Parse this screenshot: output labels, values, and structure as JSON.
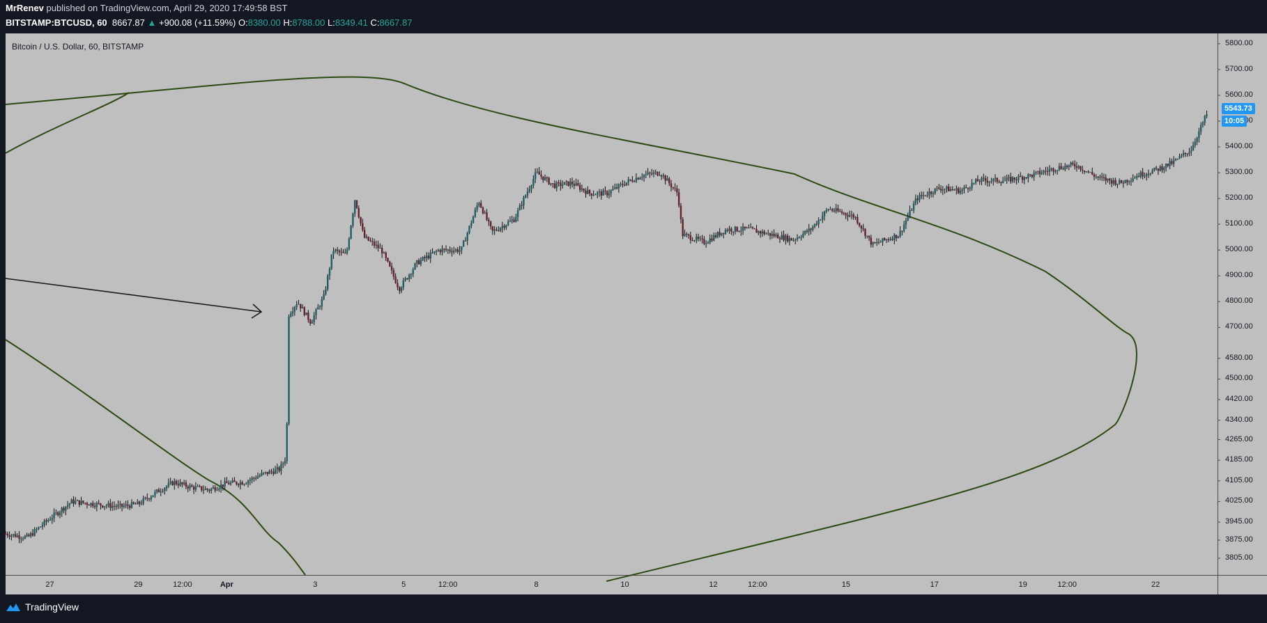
{
  "header": {
    "author": "MrRenev",
    "published": "published on TradingView.com, April 29, 2020 17:49:58 BST",
    "symbol": "BITSTAMP:BTCUSD, 60",
    "last": "8667.87",
    "change_arrow": "▲",
    "change": "+900.08 (+11.59%)",
    "o_label": "O:",
    "o_value": "8380.00",
    "h_label": "H:",
    "h_value": "8788.00",
    "l_label": "L:",
    "l_value": "8349.41",
    "c_label": "C:",
    "c_value": "8667.87"
  },
  "footer": {
    "brand": "TradingView",
    "logo_icon": "tradingview-logo-icon"
  },
  "colors": {
    "background": "#131722",
    "chart_bg": "#bfbfbf",
    "up_candle": "#1d5f66",
    "down_candle": "#6b1f2a",
    "drawing": "#2a4a0f",
    "label_blue": "#2196f3"
  },
  "chart_data": {
    "type": "candlestick",
    "title": "Bitcoin / U.S. Dollar, 60, BITSTAMP",
    "xlabel": "",
    "ylabel": "",
    "ylim": [
      3740,
      5840
    ],
    "y_ticks": [
      "5800.00",
      "5700.00",
      "5600.00",
      "5500.00",
      "5400.00",
      "5300.00",
      "5200.00",
      "5100.00",
      "5000.00",
      "4900.00",
      "4800.00",
      "4700.00",
      "4580.00",
      "4500.00",
      "4420.00",
      "4340.00",
      "4265.00",
      "4185.00",
      "4105.00",
      "4025.00",
      "3945.00",
      "3875.00",
      "3805.00"
    ],
    "x_ticks": [
      "27",
      "29",
      "12:00",
      "Apr",
      "3",
      "5",
      "12:00",
      "8",
      "10",
      "12",
      "12:00",
      "15",
      "17",
      "19",
      "12:00",
      "22"
    ],
    "x_tick_steps": [
      2,
      4,
      5,
      6,
      8,
      10,
      11,
      13,
      15,
      17,
      18,
      20,
      22,
      24,
      25,
      27
    ],
    "x_range_steps": [
      1,
      28.4
    ],
    "price_path": [
      [
        1,
        3900
      ],
      [
        1.5,
        3885
      ],
      [
        1.9,
        3945
      ],
      [
        2.5,
        4025
      ],
      [
        3,
        4015
      ],
      [
        3.6,
        4005
      ],
      [
        4,
        4015
      ],
      [
        4.4,
        4060
      ],
      [
        4.8,
        4100
      ],
      [
        5.2,
        4080
      ],
      [
        5.6,
        4070
      ],
      [
        6,
        4095
      ],
      [
        6.4,
        4100
      ],
      [
        6.8,
        4130
      ],
      [
        7.2,
        4150
      ],
      [
        7.35,
        4200
      ],
      [
        7.4,
        4750
      ],
      [
        7.6,
        4800
      ],
      [
        7.9,
        4720
      ],
      [
        8.2,
        4820
      ],
      [
        8.4,
        5000
      ],
      [
        8.7,
        4980
      ],
      [
        8.9,
        5200
      ],
      [
        9.1,
        5050
      ],
      [
        9.5,
        5000
      ],
      [
        9.9,
        4850
      ],
      [
        10.3,
        4950
      ],
      [
        10.8,
        5000
      ],
      [
        11.3,
        5000
      ],
      [
        11.7,
        5190
      ],
      [
        12,
        5070
      ],
      [
        12.5,
        5120
      ],
      [
        13,
        5300
      ],
      [
        13.4,
        5250
      ],
      [
        13.8,
        5260
      ],
      [
        14.2,
        5220
      ],
      [
        14.6,
        5220
      ],
      [
        15,
        5260
      ],
      [
        15.4,
        5290
      ],
      [
        15.8,
        5300
      ],
      [
        16.2,
        5220
      ],
      [
        16.3,
        5060
      ],
      [
        16.8,
        5030
      ],
      [
        17.3,
        5080
      ],
      [
        17.8,
        5080
      ],
      [
        18.3,
        5060
      ],
      [
        18.8,
        5040
      ],
      [
        19.2,
        5080
      ],
      [
        19.6,
        5160
      ],
      [
        20.2,
        5130
      ],
      [
        20.6,
        5020
      ],
      [
        21.2,
        5060
      ],
      [
        21.6,
        5200
      ],
      [
        22.1,
        5240
      ],
      [
        22.6,
        5230
      ],
      [
        23,
        5270
      ],
      [
        23.6,
        5270
      ],
      [
        24.2,
        5290
      ],
      [
        24.8,
        5320
      ],
      [
        25.2,
        5330
      ],
      [
        25.7,
        5280
      ],
      [
        26.2,
        5260
      ],
      [
        26.6,
        5290
      ],
      [
        27,
        5310
      ],
      [
        27.4,
        5340
      ],
      [
        27.8,
        5390
      ],
      [
        28.2,
        5543
      ]
    ],
    "series": [
      {
        "values_note": "hourly OHLC candles following price_path"
      }
    ],
    "last_price": "5543.73",
    "countdown": "10:05",
    "drawings": [
      {
        "type": "curve",
        "label": ""
      },
      {
        "type": "arrow",
        "label": ""
      }
    ],
    "grid": false,
    "legend": "none"
  }
}
